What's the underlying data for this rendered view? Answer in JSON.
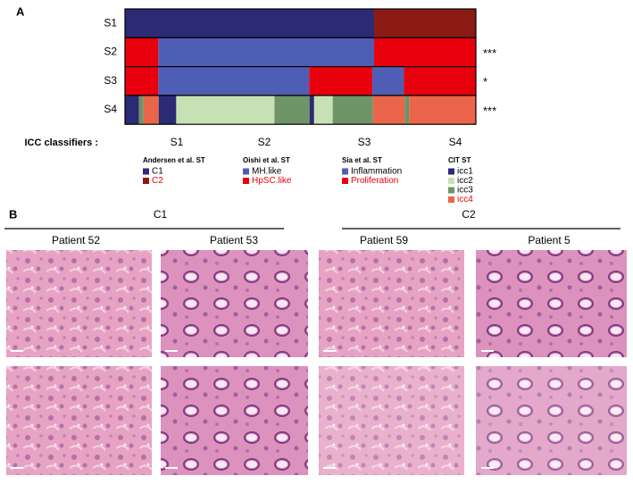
{
  "panel_a": {
    "label": "A",
    "rows": [
      {
        "name": "S1",
        "significance": "",
        "segments": [
          {
            "color": "#2b2a74",
            "width": 71
          },
          {
            "color": "#8b1a12",
            "width": 29
          }
        ]
      },
      {
        "name": "S2",
        "significance": "***",
        "segments": [
          {
            "color": "#e8000c",
            "width": 9.5
          },
          {
            "color": "#4f5eb5",
            "width": 61.5
          },
          {
            "color": "#e8000c",
            "width": 29
          }
        ]
      },
      {
        "name": "S3",
        "significance": "*",
        "segments": [
          {
            "color": "#e8000c",
            "width": 9.5
          },
          {
            "color": "#4f5eb5",
            "width": 43
          },
          {
            "color": "#e8000c",
            "width": 18
          },
          {
            "color": "#4f5eb5",
            "width": 9
          },
          {
            "color": "#e8000c",
            "width": 20.5
          }
        ]
      },
      {
        "name": "S4",
        "significance": "***",
        "segments": [
          {
            "color": "#2b2a74",
            "width": 4
          },
          {
            "color": "#6e9468",
            "width": 1.3
          },
          {
            "color": "#ea6549",
            "width": 4.3
          },
          {
            "color": "#2b2a74",
            "width": 5
          },
          {
            "color": "#c7e1b5",
            "width": 28
          },
          {
            "color": "#6e9468",
            "width": 10
          },
          {
            "color": "#2b2a74",
            "width": 1.3
          },
          {
            "color": "#c7e1b5",
            "width": 5.3
          },
          {
            "color": "#6e9468",
            "width": 11.5
          },
          {
            "color": "#ea6549",
            "width": 9
          },
          {
            "color": "#6e9468",
            "width": 1.3
          },
          {
            "color": "#ea6549",
            "width": 19
          }
        ]
      }
    ],
    "classifiers_label": "ICC classifiers :",
    "classifiers": [
      {
        "name": "S1",
        "legend_title": "Andersen et al. ST",
        "items": [
          {
            "label": "C1",
            "color": "#2b2a74",
            "label_color": "#000000"
          },
          {
            "label": "C2",
            "color": "#8b1a12",
            "label_color": "#e8000c"
          }
        ]
      },
      {
        "name": "S2",
        "legend_title": "Oishi et al. ST",
        "items": [
          {
            "label": "MH.like",
            "color": "#4f5eb5",
            "label_color": "#000000"
          },
          {
            "label": "HpSC.like",
            "color": "#e8000c",
            "label_color": "#e8000c"
          }
        ]
      },
      {
        "name": "S3",
        "legend_title": "Sia et al. ST",
        "items": [
          {
            "label": "Inflammation",
            "color": "#4f5eb5",
            "label_color": "#000000"
          },
          {
            "label": "Proliferation",
            "color": "#e8000c",
            "label_color": "#e8000c"
          }
        ]
      },
      {
        "name": "S4",
        "legend_title": "CIT ST",
        "items": [
          {
            "label": "icc1",
            "color": "#2b2a74",
            "label_color": "#000000"
          },
          {
            "label": "icc2",
            "color": "#c7e1b5",
            "label_color": "#000000"
          },
          {
            "label": "icc3",
            "color": "#6e9468",
            "label_color": "#000000"
          },
          {
            "label": "icc4",
            "color": "#ea6549",
            "label_color": "#e8000c"
          }
        ]
      }
    ]
  },
  "panel_b": {
    "label": "B",
    "groups": [
      {
        "name": "C1",
        "patients": [
          "Patient 52",
          "Patient 53"
        ]
      },
      {
        "name": "C2",
        "patients": [
          "Patient 59",
          "Patient 5"
        ]
      }
    ]
  }
}
